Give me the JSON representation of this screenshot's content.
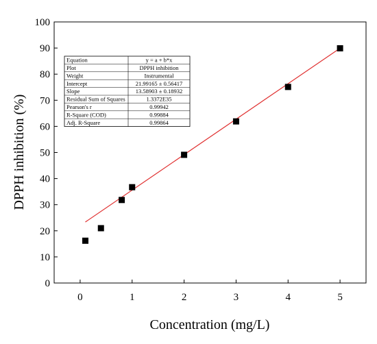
{
  "chart_data": {
    "type": "scatter",
    "xlabel": "Concentration (mg/L)",
    "ylabel": "DPPH inhibition (%)",
    "xlim": [
      -0.5,
      5.5
    ],
    "ylim": [
      0,
      100
    ],
    "x_ticks": [
      0,
      1,
      2,
      3,
      4,
      5
    ],
    "y_ticks": [
      0,
      10,
      20,
      30,
      40,
      50,
      60,
      70,
      80,
      90,
      100
    ],
    "grid": false,
    "series": [
      {
        "marker": "square",
        "color": "#000000",
        "x": [
          0.1,
          0.4,
          0.8,
          1.0,
          2.0,
          3.0,
          4.0,
          5.0
        ],
        "y": [
          16.2,
          21.0,
          31.8,
          36.7,
          49.1,
          61.9,
          75.1,
          89.9
        ]
      }
    ],
    "fit_line": {
      "color": "#e03030",
      "intercept": 21.99165,
      "slope": 13.58903,
      "x_range": [
        0.1,
        5.0
      ]
    },
    "stats_table": [
      [
        "Equation",
        "y = a + b*x"
      ],
      [
        "Plot",
        "DPPH inhibition"
      ],
      [
        "Weight",
        "Instrumental"
      ],
      [
        "Intercept",
        "21.99165 ± 0.56417"
      ],
      [
        "Slope",
        "13.58903 ± 0.18932"
      ],
      [
        "Residual Sum of Squares",
        "1.3372E35"
      ],
      [
        "Pearson's r",
        "0.99942"
      ],
      [
        "R-Square (COD)",
        "0.99884"
      ],
      [
        "Adj. R-Square",
        "0.99864"
      ]
    ]
  }
}
